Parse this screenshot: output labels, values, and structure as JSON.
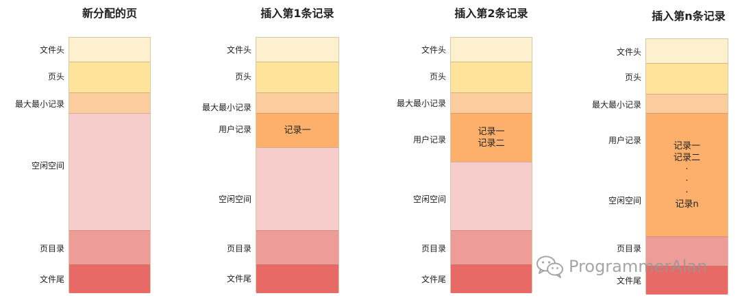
{
  "columns": [
    {
      "title": "新分配的页",
      "labels": {
        "file_header": "文件头",
        "page_header": "页头",
        "infimum_supremum": "最大最小记录",
        "free_space": "空闲空间",
        "page_directory": "页目录",
        "file_trailer": "文件尾"
      }
    },
    {
      "title": "插入第1条记录",
      "labels": {
        "file_header": "文件头",
        "page_header": "页头",
        "infimum_supremum": "最大最小记录",
        "user_records": "用户记录",
        "free_space": "空闲空间",
        "page_directory": "页目录",
        "file_trailer": "文件尾"
      },
      "records": [
        "记录一"
      ]
    },
    {
      "title": "插入第2条记录",
      "labels": {
        "file_header": "文件头",
        "page_header": "页头",
        "infimum_supremum": "最大最小记录",
        "user_records": "用户记录",
        "free_space": "空闲空间",
        "page_directory": "页目录",
        "file_trailer": "文件尾"
      },
      "records": [
        "记录一",
        "记录二"
      ]
    },
    {
      "title": "插入第n条记录",
      "labels": {
        "file_header": "文件头",
        "page_header": "页头",
        "infimum_supremum": "最大最小记录",
        "user_records": "用户记录",
        "free_space": "空闲空间",
        "page_directory": "页目录",
        "file_trailer": "文件尾"
      },
      "records": [
        "记录一",
        "记录二",
        "·",
        "·",
        "·",
        "记录n"
      ]
    }
  ],
  "colors": {
    "file_header": "#fdf0cf",
    "page_header": "#fde49a",
    "infimum_supremum": "#fbcc9e",
    "user_records": "#fdb06b",
    "free_space": "#f6cccb",
    "page_directory": "#ee9c98",
    "file_trailer": "#e86a66"
  },
  "watermark": {
    "icon": "wechat-icon",
    "text": "ProgrammerAlan"
  }
}
